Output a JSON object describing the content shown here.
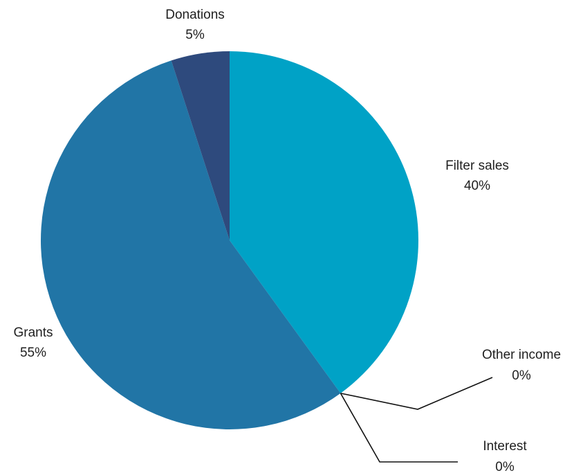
{
  "chart_data": {
    "type": "pie",
    "title": "",
    "slices": [
      {
        "name": "Filter sales",
        "value": 40,
        "pct_label": "40%",
        "color": "#00A2C6"
      },
      {
        "name": "Other income",
        "value": 0,
        "pct_label": "0%",
        "color": "#1F6FA0"
      },
      {
        "name": "Interest",
        "value": 0,
        "pct_label": "0%",
        "color": "#1F6FA0"
      },
      {
        "name": "Grants",
        "value": 55,
        "pct_label": "55%",
        "color": "#2175A6"
      },
      {
        "name": "Donations",
        "value": 5,
        "pct_label": "5%",
        "color": "#2E4A7D"
      }
    ],
    "legend": "none",
    "data_labels": "outside"
  }
}
